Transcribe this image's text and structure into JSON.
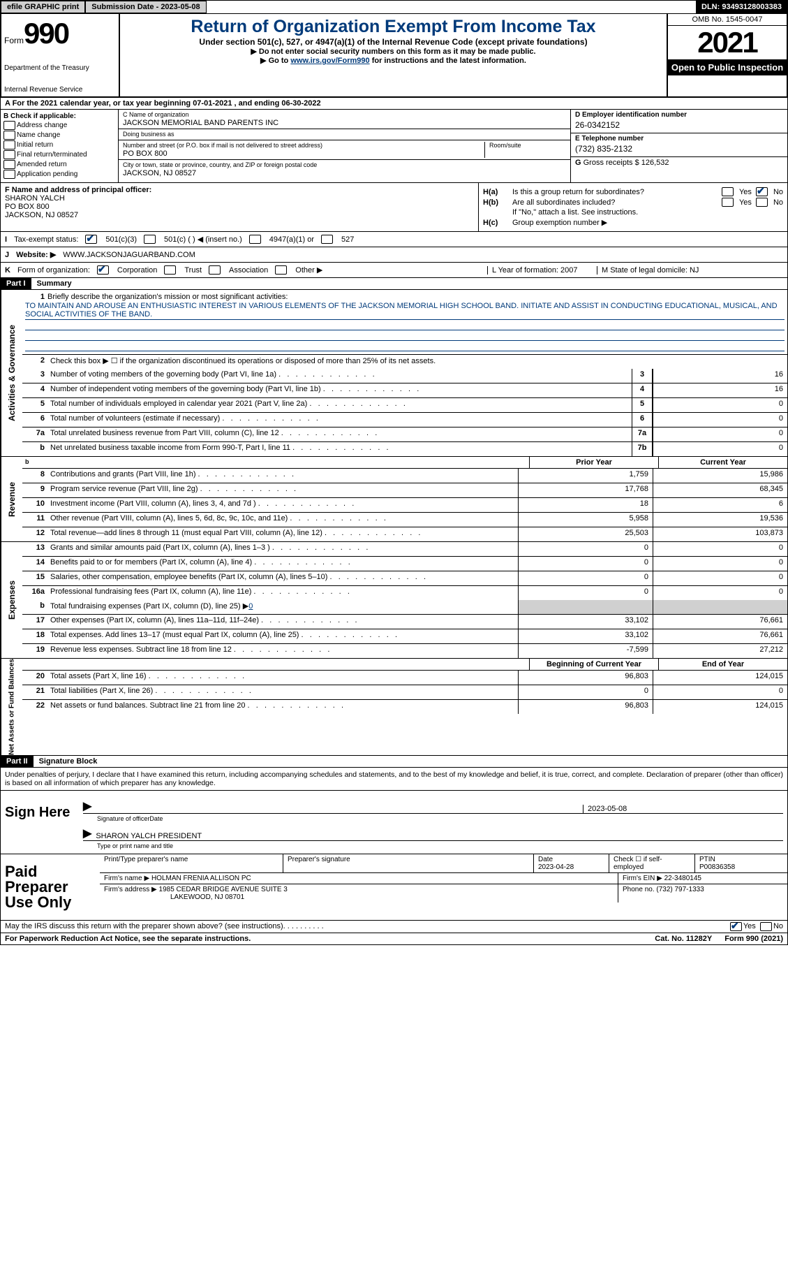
{
  "header_bar": {
    "efile": "efile GRAPHIC print",
    "submission": "Submission Date - 2023-05-08",
    "dln": "DLN: 93493128003383"
  },
  "form_hdr": {
    "form_word": "Form",
    "form_num": "990",
    "dept": "Department of the Treasury",
    "irs": "Internal Revenue Service",
    "title": "Return of Organization Exempt From Income Tax",
    "sub1": "Under section 501(c), 527, or 4947(a)(1) of the Internal Revenue Code (except private foundations)",
    "sub2": "▶ Do not enter social security numbers on this form as it may be made public.",
    "sub3_a": "▶ Go to ",
    "sub3_link": "www.irs.gov/Form990",
    "sub3_b": " for instructions and the latest information.",
    "omb": "OMB No. 1545-0047",
    "year": "2021",
    "open": "Open to Public Inspection"
  },
  "row_a": "A For the 2021 calendar year, or tax year beginning 07-01-2021   , and ending 06-30-2022",
  "col_b": {
    "hdr": "B Check if applicable:",
    "items": [
      "Address change",
      "Name change",
      "Initial return",
      "Final return/terminated",
      "Amended return",
      "Application pending"
    ]
  },
  "col_c": {
    "c_lbl": "C Name of organization",
    "c_val": "JACKSON MEMORIAL BAND PARENTS INC",
    "dba_lbl": "Doing business as",
    "dba_val": "",
    "addr_lbl": "Number and street (or P.O. box if mail is not delivered to street address)",
    "addr_val": "PO BOX 800",
    "room_lbl": "Room/suite",
    "city_lbl": "City or town, state or province, country, and ZIP or foreign postal code",
    "city_val": "JACKSON, NJ  08527"
  },
  "col_d": {
    "d_lbl": "D Employer identification number",
    "d_val": "26-0342152",
    "e_lbl": "E Telephone number",
    "e_val": "(732) 835-2132",
    "g_lbl": "G",
    "g_txt": " Gross receipts $ 126,532"
  },
  "f": {
    "lbl": "F  Name and address of principal officer:",
    "v1": "SHARON YALCH",
    "v2": "PO BOX 800",
    "v3": "JACKSON, NJ  08527"
  },
  "h": {
    "ha": "H(a)",
    "ha_txt": "Is this a group return for subordinates?",
    "yes": "Yes",
    "no": "No",
    "hb": "H(b)",
    "hb_txt": "Are all subordinates included?",
    "hb_note": "If \"No,\" attach a list. See instructions.",
    "hc": "H(c)",
    "hc_txt": "Group exemption number ▶"
  },
  "i": {
    "lbl": "I",
    "txt": "Tax-exempt status:",
    "o1": "501(c)(3)",
    "o2": "501(c) (  ) ◀ (insert no.)",
    "o3": "4947(a)(1) or",
    "o4": "527"
  },
  "j": {
    "lbl": "J",
    "txt": "Website: ▶",
    "val": "WWW.JACKSONJAGUARBAND.COM"
  },
  "k": {
    "lbl": "K",
    "txt": "Form of organization:",
    "o1": "Corporation",
    "o2": "Trust",
    "o3": "Association",
    "o4": "Other ▶",
    "L": "L Year of formation: 2007",
    "M": "M State of legal domicile: NJ"
  },
  "p1": {
    "bar": "Part I",
    "title": "Summary"
  },
  "mission": {
    "n": "1",
    "lbl": "Briefly describe the organization's mission or most significant activities:",
    "txt": "TO MAINTAIN AND AROUSE AN ENTHUSIASTIC INTEREST IN VARIOUS ELEMENTS OF THE JACKSON MEMORIAL HIGH SCHOOL BAND. INITIATE AND ASSIST IN CONDUCTING EDUCATIONAL, MUSICAL, AND SOCIAL ACTIVITIES OF THE BAND."
  },
  "gov": {
    "tab": "Activities & Governance",
    "l2": "Check this box ▶ ☐  if the organization discontinued its operations or disposed of more than 25% of its net assets.",
    "lines": [
      {
        "n": "3",
        "d": "Number of voting members of the governing body (Part VI, line 1a)",
        "box": "3",
        "v": "16"
      },
      {
        "n": "4",
        "d": "Number of independent voting members of the governing body (Part VI, line 1b)",
        "box": "4",
        "v": "16"
      },
      {
        "n": "5",
        "d": "Total number of individuals employed in calendar year 2021 (Part V, line 2a)",
        "box": "5",
        "v": "0"
      },
      {
        "n": "6",
        "d": "Total number of volunteers (estimate if necessary)",
        "box": "6",
        "v": "0"
      },
      {
        "n": "7a",
        "d": "Total unrelated business revenue from Part VIII, column (C), line 12",
        "box": "7a",
        "v": "0"
      },
      {
        "n": "b",
        "d": "Net unrelated business taxable income from Form 990-T, Part I, line 11",
        "box": "7b",
        "v": "0"
      }
    ]
  },
  "pycy": {
    "py": "Prior Year",
    "cy": "Current Year"
  },
  "rev": {
    "tab": "Revenue",
    "lines": [
      {
        "n": "8",
        "d": "Contributions and grants (Part VIII, line 1h)",
        "py": "1,759",
        "cy": "15,986"
      },
      {
        "n": "9",
        "d": "Program service revenue (Part VIII, line 2g)",
        "py": "17,768",
        "cy": "68,345"
      },
      {
        "n": "10",
        "d": "Investment income (Part VIII, column (A), lines 3, 4, and 7d )",
        "py": "18",
        "cy": "6"
      },
      {
        "n": "11",
        "d": "Other revenue (Part VIII, column (A), lines 5, 6d, 8c, 9c, 10c, and 11e)",
        "py": "5,958",
        "cy": "19,536"
      },
      {
        "n": "12",
        "d": "Total revenue—add lines 8 through 11 (must equal Part VIII, column (A), line 12)",
        "py": "25,503",
        "cy": "103,873"
      }
    ]
  },
  "exp": {
    "tab": "Expenses",
    "lines": [
      {
        "n": "13",
        "d": "Grants and similar amounts paid (Part IX, column (A), lines 1–3 )",
        "py": "0",
        "cy": "0"
      },
      {
        "n": "14",
        "d": "Benefits paid to or for members (Part IX, column (A), line 4)",
        "py": "0",
        "cy": "0"
      },
      {
        "n": "15",
        "d": "Salaries, other compensation, employee benefits (Part IX, column (A), lines 5–10)",
        "py": "0",
        "cy": "0"
      },
      {
        "n": "16a",
        "d": "Professional fundraising fees (Part IX, column (A), line 11e)",
        "py": "0",
        "cy": "0"
      }
    ],
    "l16b_n": "b",
    "l16b_d": "Total fundraising expenses (Part IX, column (D), line 25) ▶",
    "l16b_v": "0",
    "lines2": [
      {
        "n": "17",
        "d": "Other expenses (Part IX, column (A), lines 11a–11d, 11f–24e)",
        "py": "33,102",
        "cy": "76,661"
      },
      {
        "n": "18",
        "d": "Total expenses. Add lines 13–17 (must equal Part IX, column (A), line 25)",
        "py": "33,102",
        "cy": "76,661"
      },
      {
        "n": "19",
        "d": "Revenue less expenses. Subtract line 18 from line 12",
        "py": "-7,599",
        "cy": "27,212"
      }
    ]
  },
  "net": {
    "tab": "Net Assets or Fund Balances",
    "hdr_py": "Beginning of Current Year",
    "hdr_cy": "End of Year",
    "lines": [
      {
        "n": "20",
        "d": "Total assets (Part X, line 16)",
        "py": "96,803",
        "cy": "124,015"
      },
      {
        "n": "21",
        "d": "Total liabilities (Part X, line 26)",
        "py": "0",
        "cy": "0"
      },
      {
        "n": "22",
        "d": "Net assets or fund balances. Subtract line 21 from line 20",
        "py": "96,803",
        "cy": "124,015"
      }
    ]
  },
  "p2": {
    "bar": "Part II",
    "title": "Signature Block"
  },
  "sig_intro": "Under penalties of perjury, I declare that I have examined this return, including accompanying schedules and statements, and to the best of my knowledge and belief, it is true, correct, and complete. Declaration of preparer (other than officer) is based on all information of which preparer has any knowledge.",
  "sign": {
    "lbl": "Sign Here",
    "sig_of": "Signature of officer",
    "date": "2023-05-08",
    "date_lbl": "Date",
    "name": "SHARON YALCH  PRESIDENT",
    "name_lbl": "Type or print name and title"
  },
  "prep": {
    "lbl": "Paid Preparer Use Only",
    "c1": "Print/Type preparer's name",
    "c2": "Preparer's signature",
    "c3": "Date",
    "c3v": "2023-04-28",
    "c4": "Check ☐ if self-employed",
    "c5": "PTIN",
    "c5v": "P00836358",
    "r2a": "Firm's name    ▶",
    "r2av": "HOLMAN FRENIA ALLISON PC",
    "r2b": "Firm's EIN ▶ 22-3480145",
    "r3a": "Firm's address ▶",
    "r3av1": "1985 CEDAR BRIDGE AVENUE SUITE 3",
    "r3av2": "LAKEWOOD, NJ  08701",
    "r3b": "Phone no. (732) 797-1333"
  },
  "may": {
    "txt": "May the IRS discuss this return with the preparer shown above? (see instructions)",
    "yes": "Yes",
    "no": "No"
  },
  "foot": {
    "l": "For Paperwork Reduction Act Notice, see the separate instructions.",
    "m": "Cat. No. 11282Y",
    "r": "Form 990 (2021)"
  }
}
